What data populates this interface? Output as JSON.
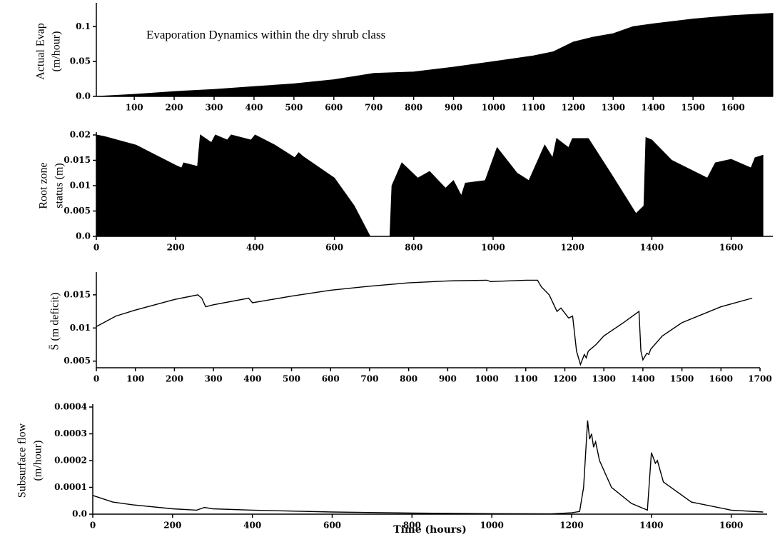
{
  "chart_data": [
    {
      "type": "area",
      "annotation": "Evaporation Dynamics within the dry shrub class",
      "ylabel": [
        "Actual Evap",
        "(m/hour)"
      ],
      "color": "#000000",
      "x": [
        5,
        100,
        200,
        300,
        400,
        500,
        600,
        700,
        800,
        900,
        1000,
        1100,
        1150,
        1200,
        1250,
        1300,
        1350,
        1400,
        1500,
        1600,
        1700
      ],
      "values": [
        0,
        0.003,
        0.007,
        0.01,
        0.014,
        0.018,
        0.024,
        0.033,
        0.035,
        0.042,
        0.05,
        0.058,
        0.064,
        0.078,
        0.085,
        0.09,
        0.1,
        0.104,
        0.111,
        0.116,
        0.119
      ],
      "xlim": [
        5,
        1700
      ],
      "ylim": [
        0,
        0.13
      ],
      "xticks": [
        100,
        200,
        300,
        400,
        500,
        600,
        700,
        800,
        900,
        1000,
        1100,
        1200,
        1300,
        1400,
        1500,
        1600
      ],
      "yticks": [
        {
          "value": 0,
          "label": "0.0"
        },
        0.05,
        0.1
      ]
    },
    {
      "type": "area",
      "ylabel": [
        "Root zone",
        "status (m)"
      ],
      "color": "#000000",
      "x": [
        0,
        20,
        100,
        200,
        215,
        220,
        255,
        262,
        290,
        300,
        330,
        340,
        390,
        400,
        450,
        500,
        510,
        520,
        600,
        650,
        690,
        740,
        745,
        770,
        810,
        840,
        880,
        900,
        920,
        930,
        980,
        1010,
        1060,
        1090,
        1130,
        1150,
        1160,
        1190,
        1200,
        1240,
        1300,
        1360,
        1380,
        1385,
        1400,
        1450,
        1540,
        1560,
        1600,
        1650,
        1660,
        1680
      ],
      "values": [
        0.02,
        0.0197,
        0.018,
        0.014,
        0.0135,
        0.0145,
        0.0138,
        0.02,
        0.0185,
        0.02,
        0.019,
        0.02,
        0.019,
        0.02,
        0.018,
        0.0155,
        0.0165,
        0.0158,
        0.0115,
        0.006,
        0,
        0,
        0.01,
        0.0145,
        0.0115,
        0.0128,
        0.0095,
        0.011,
        0.008,
        0.0105,
        0.011,
        0.0175,
        0.0125,
        0.011,
        0.018,
        0.0155,
        0.0193,
        0.0175,
        0.0193,
        0.0193,
        0.012,
        0.0045,
        0.006,
        0.0195,
        0.019,
        0.015,
        0.0115,
        0.0145,
        0.0152,
        0.0135,
        0.0155,
        0.016
      ],
      "xlim": [
        0,
        1705
      ],
      "ylim": [
        0,
        0.02
      ],
      "xticks": [
        0,
        200,
        400,
        600,
        800,
        1000,
        1200,
        1400,
        1600
      ],
      "yticks": [
        {
          "value": 0,
          "label": "0.0"
        },
        0.005,
        0.01,
        0.015,
        0.02
      ]
    },
    {
      "type": "line",
      "ylabel": [
        "S̄ (m deficit)"
      ],
      "color": "#000000",
      "x": [
        0,
        50,
        100,
        150,
        200,
        260,
        270,
        280,
        300,
        390,
        400,
        500,
        600,
        700,
        800,
        900,
        1000,
        1010,
        1100,
        1130,
        1140,
        1160,
        1180,
        1190,
        1210,
        1220,
        1230,
        1240,
        1250,
        1255,
        1260,
        1280,
        1300,
        1350,
        1390,
        1395,
        1400,
        1410,
        1415,
        1420,
        1450,
        1500,
        1600,
        1680
      ],
      "values": [
        0.0102,
        0.0118,
        0.0127,
        0.0135,
        0.0143,
        0.015,
        0.0145,
        0.0132,
        0.0135,
        0.0145,
        0.0138,
        0.0148,
        0.0157,
        0.0163,
        0.0168,
        0.0171,
        0.0172,
        0.017,
        0.0172,
        0.0172,
        0.0162,
        0.015,
        0.0125,
        0.013,
        0.0115,
        0.0118,
        0.0065,
        0.0045,
        0.006,
        0.0055,
        0.0065,
        0.0075,
        0.0088,
        0.0108,
        0.0125,
        0.0065,
        0.0052,
        0.0062,
        0.006,
        0.0068,
        0.0088,
        0.0108,
        0.0132,
        0.0145
      ],
      "xlim": [
        0,
        1700
      ],
      "ylim": [
        0.004,
        0.018
      ],
      "xticks": [
        0,
        100,
        200,
        300,
        400,
        500,
        600,
        700,
        800,
        900,
        1000,
        1100,
        1200,
        1300,
        1400,
        1500,
        1600,
        1700
      ],
      "yticks": [
        0.005,
        0.01,
        0.015
      ]
    },
    {
      "type": "line",
      "ylabel": [
        "Subsurface flow",
        "(m/hour)"
      ],
      "xlabel": "Time (hours)",
      "color": "#000000",
      "x": [
        0,
        50,
        100,
        200,
        260,
        280,
        300,
        400,
        600,
        800,
        1000,
        1150,
        1200,
        1220,
        1230,
        1240,
        1245,
        1250,
        1255,
        1260,
        1270,
        1300,
        1350,
        1390,
        1400,
        1405,
        1410,
        1415,
        1430,
        1500,
        1600,
        1680
      ],
      "values": [
        7e-05,
        4.5e-05,
        3.5e-05,
        2e-05,
        1.5e-05,
        2.5e-05,
        2e-05,
        1.5e-05,
        8e-06,
        4e-06,
        2e-06,
        1e-06,
        5e-06,
        1e-05,
        0.0001,
        0.00035,
        0.00028,
        0.0003,
        0.00025,
        0.00027,
        0.0002,
        0.0001,
        4e-05,
        1.5e-05,
        0.00023,
        0.00021,
        0.00019,
        0.0002,
        0.00012,
        4.5e-05,
        1.5e-05,
        8e-06
      ],
      "xlim": [
        0,
        1690
      ],
      "ylim": [
        0,
        0.0004
      ],
      "xticks": [
        0,
        200,
        400,
        600,
        800,
        1000,
        1200,
        1400,
        1600
      ],
      "yticks": [
        {
          "value": 0,
          "label": "0.0"
        },
        0.0001,
        0.0002,
        0.0003,
        0.0004
      ]
    }
  ]
}
